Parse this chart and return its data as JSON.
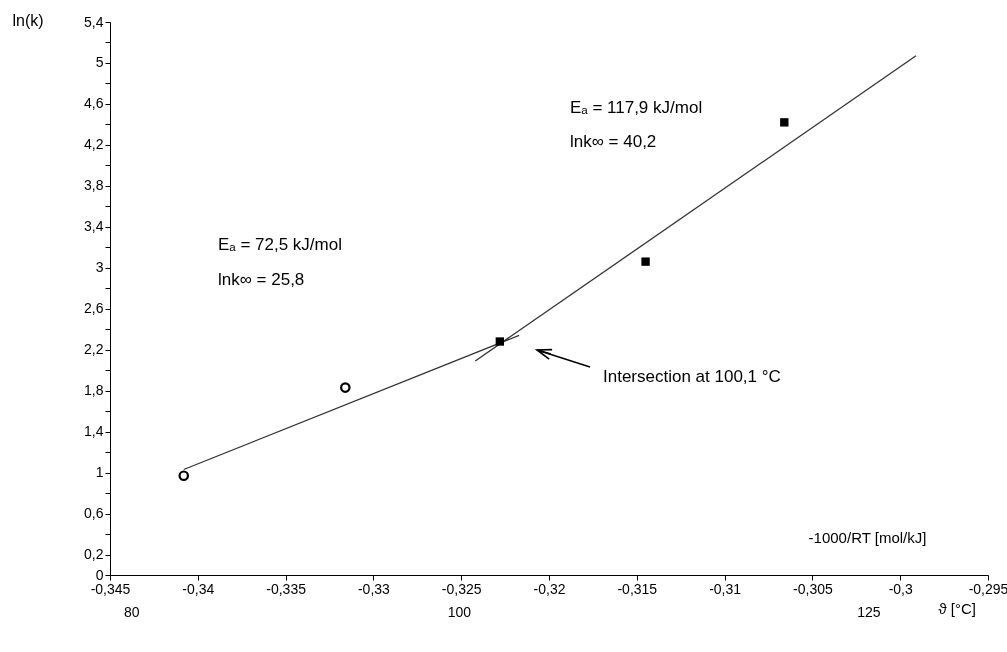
{
  "chart_data": {
    "type": "scatter",
    "xlabel": "-1000/RT [mol/kJ]",
    "ylabel": "ln(k)",
    "x2label": "ϑ [°C]",
    "xlim": [
      -0.345,
      -0.295
    ],
    "xticks": [
      {
        "value": -0.345,
        "label": "-0,345"
      },
      {
        "value": -0.34,
        "label": "-0,34"
      },
      {
        "value": -0.335,
        "label": "-0,335"
      },
      {
        "value": -0.33,
        "label": "-0,33"
      },
      {
        "value": -0.325,
        "label": "-0,325"
      },
      {
        "value": -0.32,
        "label": "-0,32"
      },
      {
        "value": -0.315,
        "label": "-0,315"
      },
      {
        "value": -0.31,
        "label": "-0,31"
      },
      {
        "value": -0.305,
        "label": "-0,305"
      },
      {
        "value": -0.3,
        "label": "-0,3"
      },
      {
        "value": -0.295,
        "label": "-0,295"
      }
    ],
    "x2lim": [
      78.7,
      132.3
    ],
    "x2ticks": [
      80,
      100,
      125
    ],
    "ylim": [
      0,
      5.4
    ],
    "yticks": [
      0,
      {
        "value": 0.2,
        "label": "0,2"
      },
      {
        "value": 0.4,
        "label": null
      },
      {
        "value": 0.6,
        "label": "0,6"
      },
      {
        "value": 0.8,
        "label": null
      },
      1,
      {
        "value": 1.2,
        "label": null
      },
      {
        "value": 1.4,
        "label": "1,4"
      },
      {
        "value": 1.6,
        "label": null
      },
      {
        "value": 1.8,
        "label": "1,8"
      },
      {
        "value": 2.0,
        "label": null
      },
      {
        "value": 2.2,
        "label": "2,2"
      },
      {
        "value": 2.4,
        "label": null
      },
      {
        "value": 2.6,
        "label": "2,6"
      },
      {
        "value": 2.8,
        "label": null
      },
      3,
      {
        "value": 3.2,
        "label": null
      },
      {
        "value": 3.4,
        "label": "3,4"
      },
      {
        "value": 3.6,
        "label": null
      },
      {
        "value": 3.8,
        "label": "3,8"
      },
      {
        "value": 4.0,
        "label": null
      },
      {
        "value": 4.2,
        "label": "4,2"
      },
      {
        "value": 4.4,
        "label": null
      },
      {
        "value": 4.6,
        "label": "4,6"
      },
      {
        "value": 4.8,
        "label": null
      },
      5,
      {
        "value": 5.2,
        "label": null
      },
      {
        "value": 5.4,
        "label": "5,4"
      }
    ],
    "grid": false,
    "series": [
      {
        "type": "line",
        "color": "#333333",
        "marker": "none",
        "x": [
          -0.3408,
          -0.3217
        ],
        "values": [
          1.03,
          2.34
        ]
      },
      {
        "type": "line",
        "color": "#333333",
        "marker": "none",
        "x": [
          -0.3242,
          -0.2991
        ],
        "values": [
          2.09,
          5.07
        ]
      },
      {
        "type": "scatter",
        "color": "#000000",
        "marker": "circle",
        "x": [
          -0.3408,
          -0.3316
        ],
        "values": [
          0.97,
          1.83
        ]
      },
      {
        "type": "scatter",
        "color": "#000000",
        "marker": "square",
        "x": [
          -0.3228,
          -0.3145,
          -0.3066
        ],
        "values": [
          2.28,
          3.06,
          4.42
        ]
      }
    ],
    "annotations": [
      "Eₐ = 72,5 kJ/mol",
      "lnk∞ = 25,8",
      "Eₐ = 117,9 kJ/mol",
      "lnk∞ = 40,2",
      "Intersection at 100,1 °C"
    ]
  }
}
